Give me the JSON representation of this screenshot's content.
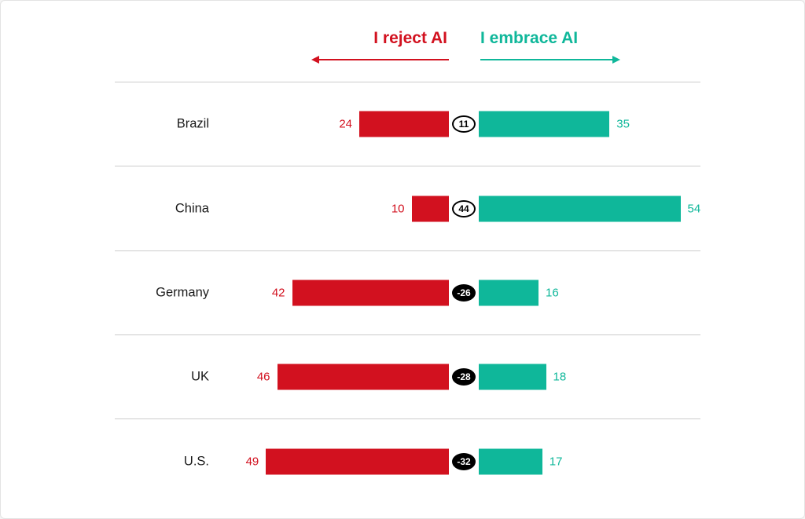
{
  "header": {
    "reject_label": "I reject AI",
    "embrace_label": "I embrace AI"
  },
  "colors": {
    "reject": "#d2111f",
    "embrace": "#0fb79a",
    "gridline": "#cccccc",
    "label": "#1a1a1a"
  },
  "chart_data": {
    "type": "bar",
    "subtype": "diverging-horizontal",
    "title": "",
    "legend": [
      "I reject AI",
      "I embrace AI"
    ],
    "legend_position": "top",
    "categories": [
      "Brazil",
      "China",
      "Germany",
      "UK",
      "U.S."
    ],
    "series": [
      {
        "name": "I reject AI",
        "values": [
          24,
          10,
          42,
          46,
          49
        ],
        "direction": "left"
      },
      {
        "name": "I embrace AI",
        "values": [
          35,
          54,
          16,
          18,
          17
        ],
        "direction": "right"
      }
    ],
    "net_values": [
      11,
      44,
      -26,
      -28,
      -32
    ],
    "rows": [
      {
        "country": "Brazil",
        "reject": 24,
        "embrace": 35,
        "net": "11"
      },
      {
        "country": "China",
        "reject": 10,
        "embrace": 54,
        "net": "44"
      },
      {
        "country": "Germany",
        "reject": 42,
        "embrace": 16,
        "net": "-26"
      },
      {
        "country": "UK",
        "reject": 46,
        "embrace": 18,
        "net": "-28"
      },
      {
        "country": "U.S.",
        "reject": 49,
        "embrace": 17,
        "net": "-32"
      }
    ],
    "grid": true,
    "value_axis_hidden": true
  }
}
